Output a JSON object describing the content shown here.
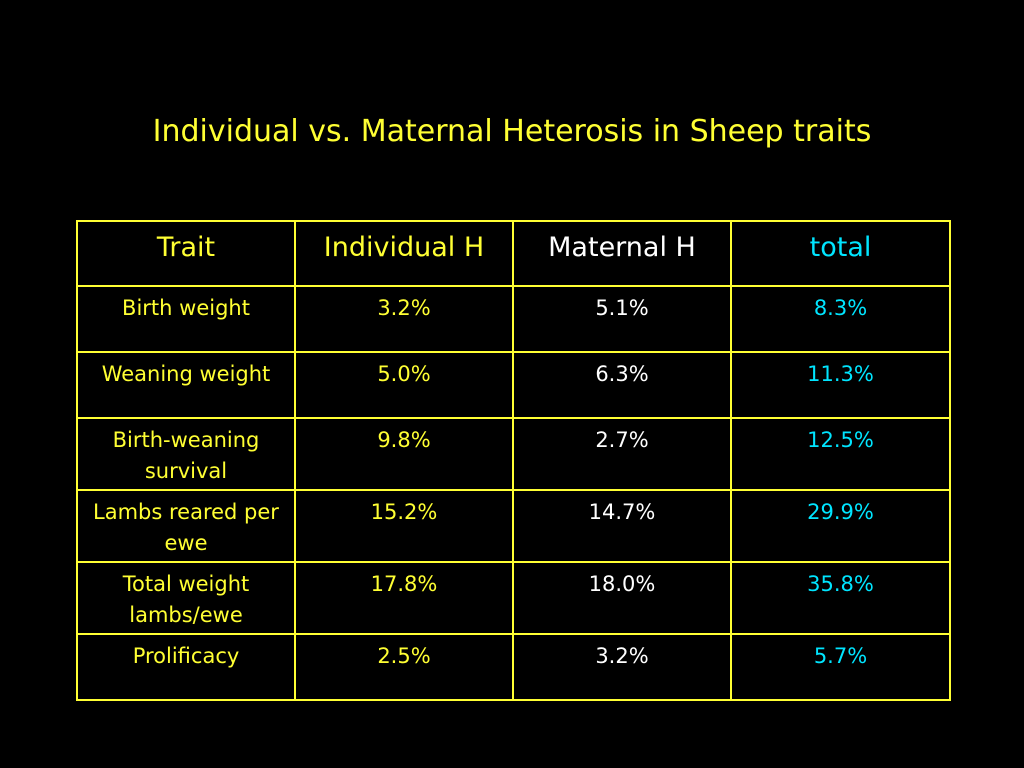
{
  "title": "Individual vs. Maternal Heterosis in Sheep traits",
  "colors": {
    "background": "#000000",
    "title": "#ffff33",
    "border": "#ffff33",
    "trait_text": "#ffff33",
    "individual_text": "#ffff33",
    "maternal_text": "#ffffff",
    "total_text": "#00e5ff"
  },
  "table": {
    "headers": [
      "Trait",
      "Individual H",
      "Maternal H",
      "total"
    ],
    "rows": [
      {
        "trait": "Birth weight",
        "individual": "3.2%",
        "maternal": "5.1%",
        "total": "8.3%"
      },
      {
        "trait": "Weaning weight",
        "individual": "5.0%",
        "maternal": "6.3%",
        "total": "11.3%"
      },
      {
        "trait": "Birth-weaning survival",
        "individual": "9.8%",
        "maternal": "2.7%",
        "total": "12.5%"
      },
      {
        "trait": "Lambs reared per ewe",
        "individual": "15.2%",
        "maternal": "14.7%",
        "total": "29.9%"
      },
      {
        "trait": "Total weight lambs/ewe",
        "individual": "17.8%",
        "maternal": "18.0%",
        "total": "35.8%"
      },
      {
        "trait": "Prolificacy",
        "individual": "2.5%",
        "maternal": "3.2%",
        "total": "5.7%"
      }
    ]
  }
}
